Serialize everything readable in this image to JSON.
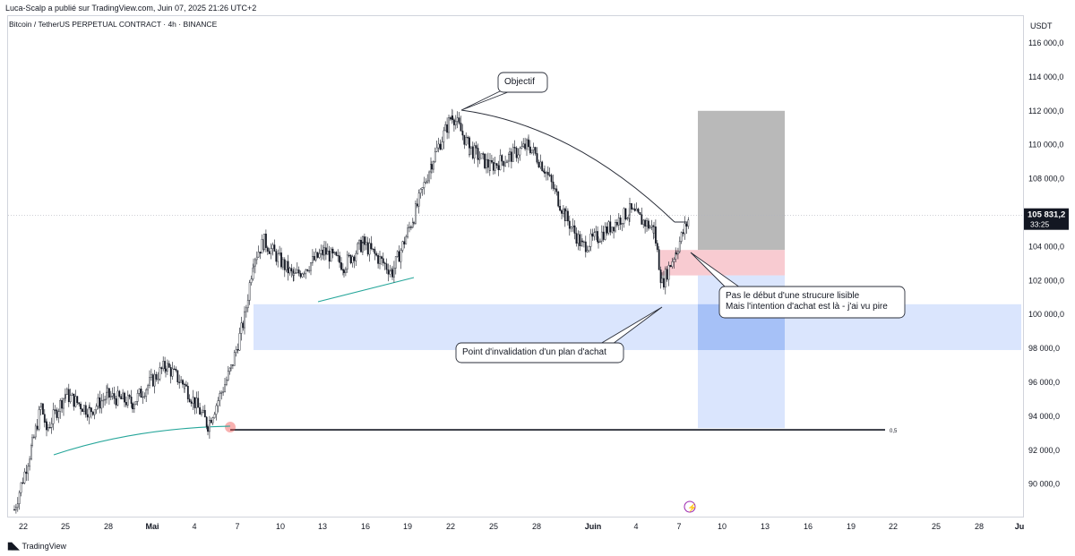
{
  "header": {
    "publisher_line": "Luca-Scalp a publié sur TradingView.com, Juin 07, 2025 21:26 UTC+2",
    "symbol_line": "Bitcoin / TetherUS PERPETUAL CONTRACT · 4h · BINANCE"
  },
  "footer": {
    "brand": "TradingView"
  },
  "colors": {
    "candle": "#131722",
    "demand_zone": "#bbd0fb",
    "target_zone": "#9e9e9e",
    "entry_zone": "#f5b5bd",
    "trendline": "#26a69a",
    "price_line": "#131722"
  },
  "chart_data": {
    "type": "candlestick",
    "title": "Bitcoin / TetherUS PERPETUAL CONTRACT · 4h · BINANCE",
    "currency": "USDT",
    "ylim": [
      88000,
      117500
    ],
    "y_ticks": [
      {
        "value": 90000,
        "label": "90 000,0"
      },
      {
        "value": 92000,
        "label": "92 000,0"
      },
      {
        "value": 94000,
        "label": "94 000,0"
      },
      {
        "value": 96000,
        "label": "96 000,0"
      },
      {
        "value": 98000,
        "label": "98 000,0"
      },
      {
        "value": 100000,
        "label": "100 000,0"
      },
      {
        "value": 102000,
        "label": "102 000,0"
      },
      {
        "value": 104000,
        "label": "104 000,0"
      },
      {
        "value": 106000,
        "label": "106 000,0"
      },
      {
        "value": 108000,
        "label": "108 000,0"
      },
      {
        "value": 110000,
        "label": "110 000,0"
      },
      {
        "value": 112000,
        "label": "112 000,0"
      },
      {
        "value": 114000,
        "label": "114 000,0"
      },
      {
        "value": 116000,
        "label": "116 000,0"
      }
    ],
    "x_ticks": [
      "22",
      "25",
      "28",
      "Mai",
      "4",
      "7",
      "10",
      "13",
      "16",
      "19",
      "22",
      "25",
      "28",
      "Juin",
      "4",
      "7",
      "10",
      "13",
      "16",
      "19",
      "22",
      "25",
      "28",
      "Ju"
    ],
    "last_price": {
      "value": 105831.2,
      "label": "105 831,2",
      "countdown": "33:25"
    },
    "horizontal_line": {
      "value": 93200,
      "label": "0,5"
    },
    "zones": [
      {
        "name": "demand",
        "from": 97900,
        "to": 100600
      },
      {
        "name": "target",
        "from": 103800,
        "to": 112000
      },
      {
        "name": "entry",
        "from": 102300,
        "to": 103800
      },
      {
        "name": "stop",
        "from": 93300,
        "to": 102300
      }
    ],
    "annotations": [
      {
        "text": "Objectif",
        "anchor_price": 111900
      },
      {
        "text": "Point d'invalidation d'un plan d'achat",
        "anchor_price": 100300
      },
      {
        "text": "Pas le début d'une strucure lisible",
        "line": 1
      },
      {
        "text": "Mais l'intention d'achat est là - j'ai vu pire",
        "line": 2
      }
    ],
    "pivots": [
      {
        "date": "Apr 20",
        "price": 88500
      },
      {
        "date": "Apr 21",
        "price": 92300
      },
      {
        "date": "Apr 22",
        "price": 94600
      },
      {
        "date": "Apr 23",
        "price": 93200
      },
      {
        "date": "Apr 25",
        "price": 95300
      },
      {
        "date": "Apr 27",
        "price": 94300
      },
      {
        "date": "Apr 29",
        "price": 95200
      },
      {
        "date": "May 1",
        "price": 94800
      },
      {
        "date": "May 2",
        "price": 97000
      },
      {
        "date": "May 4",
        "price": 95800
      },
      {
        "date": "May 6",
        "price": 93500
      },
      {
        "date": "May 7",
        "price": 96800
      },
      {
        "date": "May 8",
        "price": 99800
      },
      {
        "date": "May 9",
        "price": 103300
      },
      {
        "date": "May 11",
        "price": 104300
      },
      {
        "date": "May 13",
        "price": 102200
      },
      {
        "date": "May 14",
        "price": 103700
      },
      {
        "date": "May 16",
        "price": 102900
      },
      {
        "date": "May 18",
        "price": 104200
      },
      {
        "date": "May 19",
        "price": 102500
      },
      {
        "date": "May 20",
        "price": 105800
      },
      {
        "date": "May 21",
        "price": 109000
      },
      {
        "date": "May 22",
        "price": 111800
      },
      {
        "date": "May 23",
        "price": 109800
      },
      {
        "date": "May 24",
        "price": 108700
      },
      {
        "date": "May 26",
        "price": 109300
      },
      {
        "date": "May 27",
        "price": 110000
      },
      {
        "date": "May 28",
        "price": 108600
      },
      {
        "date": "May 30",
        "price": 105700
      },
      {
        "date": "May 31",
        "price": 104000
      },
      {
        "date": "Jun 1",
        "price": 104600
      },
      {
        "date": "Jun 3",
        "price": 106100
      },
      {
        "date": "Jun 4",
        "price": 105000
      },
      {
        "date": "Jun 5",
        "price": 101800
      },
      {
        "date": "Jun 6",
        "price": 103800
      },
      {
        "date": "Jun 7",
        "price": 105800
      }
    ]
  }
}
